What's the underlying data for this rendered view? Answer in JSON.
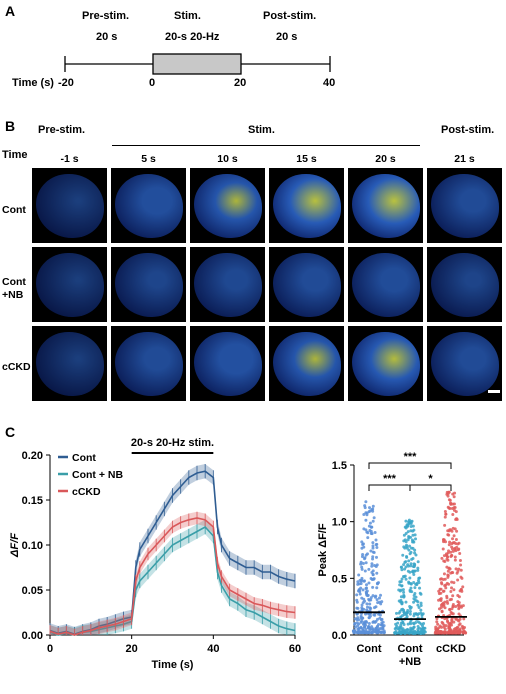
{
  "panelA": {
    "letter": "A",
    "phase_labels": [
      "Pre-stim.",
      "Stim.",
      "Post-stim."
    ],
    "duration_labels": [
      "20 s",
      "20-s 20-Hz",
      "20 s"
    ],
    "axis_label": "Time (s)",
    "ticks": [
      "-20",
      "0",
      "20",
      "40"
    ]
  },
  "panelB": {
    "letter": "B",
    "phase_labels": [
      "Pre-stim.",
      "Stim.",
      "Post-stim."
    ],
    "time_header": "Time",
    "timepoints": [
      "-1 s",
      "5 s",
      "10 s",
      "15 s",
      "20 s",
      "21 s"
    ],
    "rows": [
      {
        "label": "Cont",
        "intensity": [
          0.05,
          0.35,
          0.5,
          0.6,
          0.62,
          0.3
        ]
      },
      {
        "label": "Cont\n+NB",
        "intensity": [
          0.05,
          0.2,
          0.25,
          0.3,
          0.32,
          0.18
        ]
      },
      {
        "label": "cCKD",
        "intensity": [
          0.05,
          0.3,
          0.4,
          0.5,
          0.55,
          0.3
        ]
      }
    ],
    "colors": {
      "low": "#0b1f6e",
      "mid": "#2f6bd6",
      "high": "#d8e24a"
    }
  },
  "panelC": {
    "letter": "C"
  },
  "chart_data": [
    {
      "type": "line",
      "xlabel": "Time (s)",
      "ylabel": "ΔF/F",
      "xlim": [
        0,
        60
      ],
      "ylim": [
        0,
        0.2
      ],
      "xticks": [
        0,
        20,
        40,
        60
      ],
      "xtick_labels": [
        "0",
        "20",
        "40",
        "60"
      ],
      "yticks": [
        0,
        0.05,
        0.1,
        0.15,
        0.2
      ],
      "ytick_labels": [
        "0.00",
        "0.05",
        "0.10",
        "0.15",
        "0.20"
      ],
      "annotation": "20-s 20-Hz stim.",
      "legend": "top-left",
      "x": [
        0,
        2,
        4,
        6,
        8,
        10,
        12,
        14,
        16,
        18,
        20,
        21,
        22,
        24,
        26,
        28,
        30,
        32,
        34,
        36,
        38,
        40,
        41,
        42,
        44,
        46,
        48,
        50,
        52,
        54,
        56,
        58,
        60
      ],
      "series": [
        {
          "name": "Cont",
          "color": "#2f5d92",
          "values": [
            0.005,
            0.002,
            0.004,
            0.001,
            0.004,
            0.006,
            0.01,
            0.012,
            0.015,
            0.018,
            0.02,
            0.075,
            0.095,
            0.11,
            0.125,
            0.14,
            0.155,
            0.165,
            0.175,
            0.18,
            0.182,
            0.175,
            0.12,
            0.1,
            0.085,
            0.08,
            0.075,
            0.075,
            0.07,
            0.07,
            0.065,
            0.062,
            0.06
          ]
        },
        {
          "name": "Cont + NB",
          "color": "#3a9ea8",
          "values": [
            0.003,
            0.0,
            0.002,
            0.0,
            0.003,
            0.004,
            0.006,
            0.008,
            0.01,
            0.012,
            0.015,
            0.05,
            0.06,
            0.07,
            0.08,
            0.09,
            0.1,
            0.105,
            0.11,
            0.115,
            0.12,
            0.11,
            0.07,
            0.055,
            0.04,
            0.035,
            0.028,
            0.025,
            0.02,
            0.015,
            0.01,
            0.007,
            0.005
          ]
        },
        {
          "name": "cCKD",
          "color": "#d9585a",
          "values": [
            0.004,
            0.001,
            0.003,
            0.0,
            0.003,
            0.005,
            0.008,
            0.01,
            0.012,
            0.015,
            0.018,
            0.06,
            0.075,
            0.09,
            0.1,
            0.11,
            0.12,
            0.125,
            0.128,
            0.13,
            0.128,
            0.12,
            0.08,
            0.065,
            0.05,
            0.045,
            0.04,
            0.035,
            0.033,
            0.03,
            0.028,
            0.026,
            0.025
          ]
        }
      ]
    },
    {
      "type": "scatter",
      "ylabel": "Peak ΔF/F",
      "ylim": [
        0,
        1.5
      ],
      "yticks": [
        0,
        0.5,
        1.0,
        1.5
      ],
      "ytick_labels": [
        "0.0",
        "0.5",
        "1.0",
        "1.5"
      ],
      "categories": [
        "Cont",
        "Cont\n+NB",
        "cCKD"
      ],
      "medians": [
        0.2,
        0.14,
        0.16
      ],
      "colors": [
        "#5b8fd8",
        "#3aa6c8",
        "#e05a5a"
      ],
      "maxima": [
        1.18,
        1.02,
        1.26
      ],
      "significance": [
        {
          "pair": [
            0,
            1
          ],
          "label": "***"
        },
        {
          "pair": [
            1,
            2
          ],
          "label": "*"
        },
        {
          "pair": [
            0,
            2
          ],
          "label": "***"
        }
      ]
    }
  ]
}
